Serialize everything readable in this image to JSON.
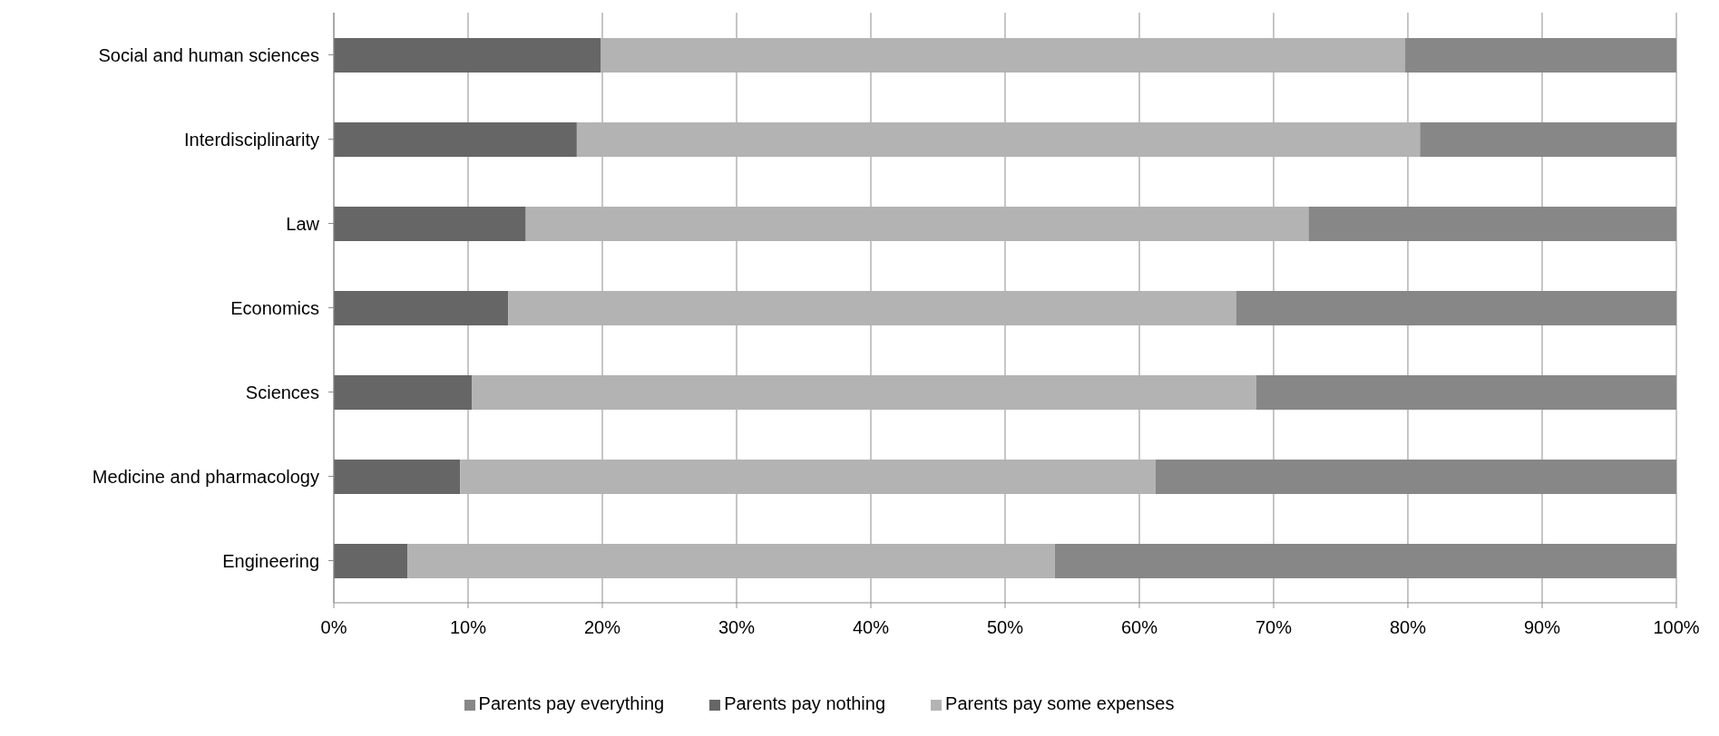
{
  "chart_data": {
    "type": "bar",
    "orientation": "horizontal",
    "stacked": true,
    "categories": [
      "Social and human sciences",
      "Interdisciplinarity",
      "Law",
      "Economics",
      "Sciences",
      "Medicine and pharmacology",
      "Engineering"
    ],
    "series": [
      {
        "name": "Parents pay nothing",
        "color": "#666666",
        "values": [
          19.9,
          18.1,
          14.3,
          13.0,
          10.3,
          9.4,
          5.5
        ]
      },
      {
        "name": "Parents pay some expenses",
        "color": "#b3b3b3",
        "values": [
          59.9,
          62.8,
          58.3,
          54.2,
          58.4,
          51.8,
          48.2
        ]
      },
      {
        "name": "Parents pay everything",
        "color": "#878787",
        "values": [
          20.2,
          19.1,
          27.4,
          32.8,
          31.3,
          38.8,
          46.3
        ]
      }
    ],
    "xlim": [
      0,
      100
    ],
    "xticks": [
      {
        "value": 0,
        "label": "0%"
      },
      {
        "value": 10,
        "label": "10%"
      },
      {
        "value": 20,
        "label": "20%"
      },
      {
        "value": 30,
        "label": "30%"
      },
      {
        "value": 40,
        "label": "40%"
      },
      {
        "value": 50,
        "label": "50%"
      },
      {
        "value": 60,
        "label": "60%"
      },
      {
        "value": 70,
        "label": "70%"
      },
      {
        "value": 80,
        "label": "80%"
      },
      {
        "value": 90,
        "label": "90%"
      },
      {
        "value": 100,
        "label": "100%"
      }
    ],
    "grid": "x",
    "legend": "bottom"
  }
}
